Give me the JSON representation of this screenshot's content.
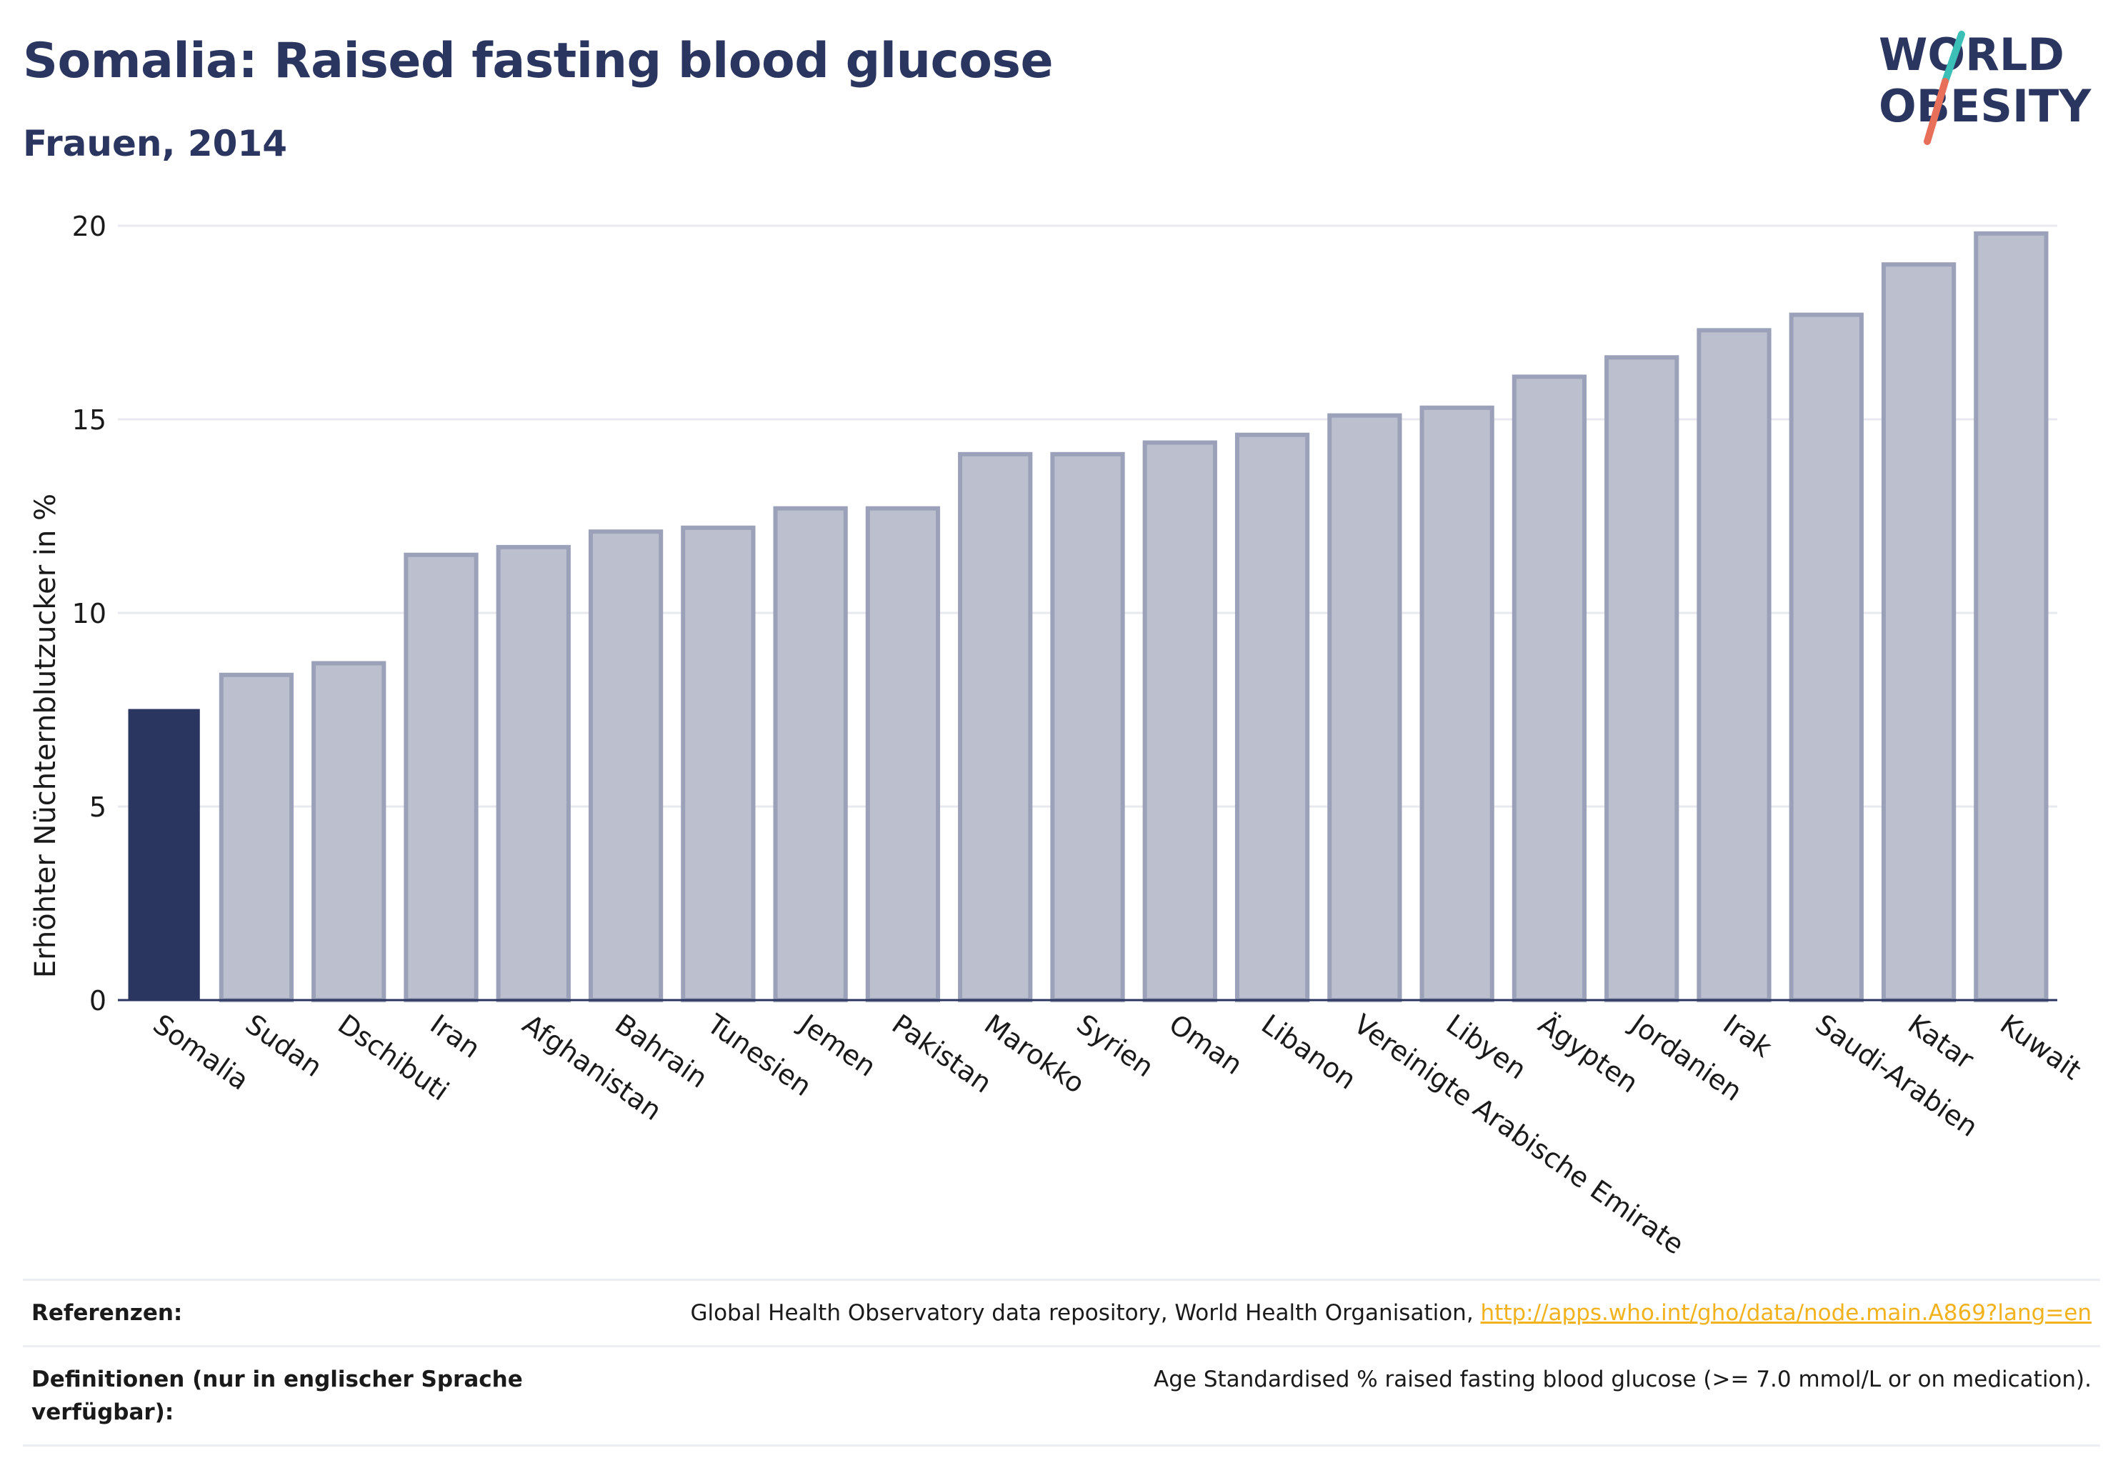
{
  "header": {
    "title": "Somalia: Raised fasting blood glucose",
    "subtitle": "Frauen, 2014"
  },
  "logo": {
    "line1": "WORLD",
    "line2": "OBESITY",
    "colors": {
      "text": "#2b3660",
      "slash_top": "#3bbfb6",
      "slash_bottom": "#e8705a"
    }
  },
  "chart_data": {
    "type": "bar",
    "ylabel": "Erhöhter Nüchternblutzucker in %",
    "ylim": [
      0,
      20
    ],
    "yticks": [
      0,
      5,
      10,
      15,
      20
    ],
    "grid": true,
    "highlight_index": 0,
    "colors": {
      "highlight": "#2b3660",
      "bar_fill": "#bcc0ce",
      "bar_stroke": "#9aa1b8",
      "grid": "#e8e9ee",
      "axis": "#2b3660"
    },
    "categories": [
      "Somalia",
      "Sudan",
      "Dschibuti",
      "Iran",
      "Afghanistan",
      "Bahrain",
      "Tunesien",
      "Jemen",
      "Pakistan",
      "Marokko",
      "Syrien",
      "Oman",
      "Libanon",
      "Vereinigte Arabische Emirate",
      "Libyen",
      "Ägypten",
      "Jordanien",
      "Irak",
      "Saudi-Arabien",
      "Katar",
      "Kuwait"
    ],
    "values": [
      7.5,
      8.4,
      8.7,
      11.5,
      11.7,
      12.1,
      12.2,
      12.7,
      12.7,
      14.1,
      14.1,
      14.4,
      14.6,
      15.1,
      15.3,
      16.1,
      16.6,
      17.3,
      17.7,
      19.0,
      19.8
    ]
  },
  "footer": {
    "references_label": "Referenzen:",
    "references_text": "Global Health Observatory data repository, World Health Organisation, ",
    "references_link": "http://apps.who.int/gho/data/node.main.A869?lang=en",
    "definitions_label": "Definitionen (nur in englischer Sprache verfügbar):",
    "definitions_text": "Age Standardised % raised fasting blood glucose (>= 7.0 mmol/L or on medication)."
  }
}
